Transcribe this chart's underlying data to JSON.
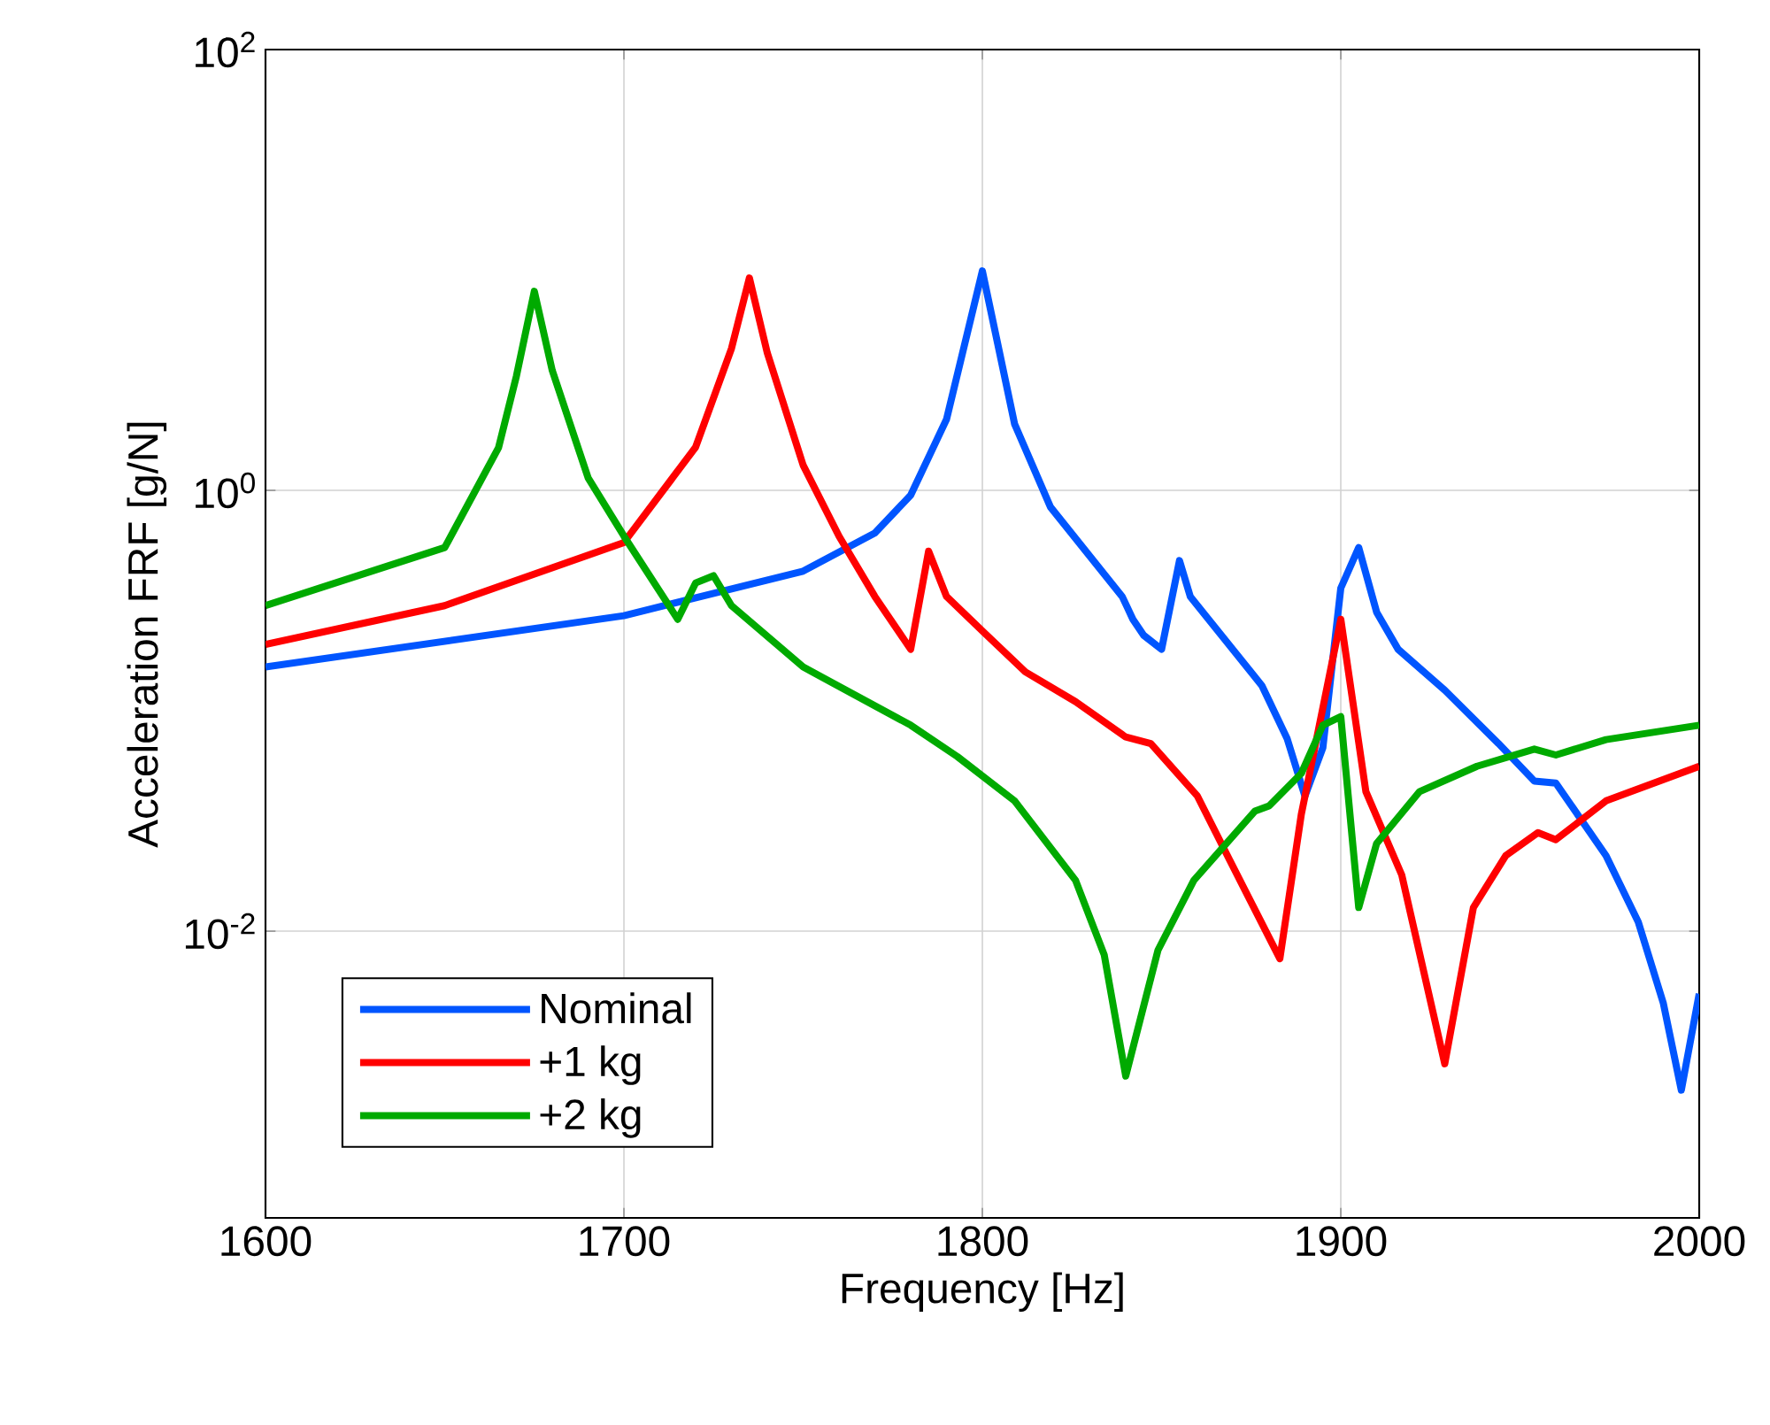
{
  "chart_data": {
    "type": "line",
    "xlabel": "Frequency [Hz]",
    "ylabel": "Acceleration FRF [g/N]",
    "log": "y",
    "grid": true,
    "legend": "bottom left",
    "line_style": "solid",
    "marker": "none",
    "xlim": [
      1600,
      2000
    ],
    "xticks": [
      1600,
      1700,
      1800,
      1900,
      2000
    ],
    "ylim": [
      0.0005,
      100
    ],
    "yticks": [
      {
        "value": 0.01,
        "label": "10$^{-2}$"
      },
      {
        "value": 1,
        "label": "10$^{0}$"
      },
      {
        "value": 100,
        "label": "10$^{2}$"
      }
    ],
    "series": [
      {
        "name": "Nominal",
        "color": "#0055ff",
        "x": [
          1600,
          1700,
          1750,
          1770,
          1780,
          1790,
          1800,
          1809,
          1819,
          1839,
          1842,
          1845,
          1850,
          1855,
          1858,
          1878,
          1885,
          1890,
          1895,
          1900,
          1905,
          1910,
          1916,
          1929,
          1944,
          1954,
          1960,
          1974,
          1983,
          1990,
          1995,
          2000
        ],
        "values": [
          0.158,
          0.27,
          0.43,
          0.64,
          0.95,
          2.1,
          9.9,
          2.0,
          0.84,
          0.33,
          0.26,
          0.22,
          0.19,
          0.48,
          0.33,
          0.13,
          0.075,
          0.041,
          0.068,
          0.36,
          0.55,
          0.28,
          0.19,
          0.124,
          0.071,
          0.048,
          0.047,
          0.022,
          0.011,
          0.0047,
          0.0019,
          0.0052
        ]
      },
      {
        "name": "+1 kg",
        "color": "#ff0000",
        "x": [
          1600,
          1650,
          1700,
          1720,
          1730,
          1735,
          1740,
          1750,
          1760,
          1770,
          1780,
          1785,
          1790,
          1800,
          1812,
          1826,
          1840,
          1847,
          1860,
          1869,
          1883,
          1889,
          1900,
          1907,
          1917,
          1929,
          1937,
          1946,
          1955,
          1960,
          1974,
          2000
        ],
        "values": [
          0.2,
          0.3,
          0.58,
          1.57,
          4.4,
          9.2,
          4.2,
          1.3,
          0.62,
          0.33,
          0.19,
          0.53,
          0.33,
          0.23,
          0.15,
          0.11,
          0.076,
          0.071,
          0.041,
          0.021,
          0.0075,
          0.034,
          0.26,
          0.043,
          0.018,
          0.0025,
          0.0128,
          0.022,
          0.028,
          0.026,
          0.039,
          0.056
        ]
      },
      {
        "name": "+2 kg",
        "color": "#00aa00",
        "x": [
          1600,
          1650,
          1665,
          1670,
          1675,
          1680,
          1690,
          1700,
          1715,
          1720,
          1725,
          1730,
          1750,
          1780,
          1793,
          1809,
          1826,
          1834,
          1840,
          1849,
          1859,
          1876,
          1880,
          1889,
          1895,
          1900,
          1905,
          1910,
          1922,
          1938,
          1954,
          1960,
          1974,
          2000
        ],
        "values": [
          0.3,
          0.55,
          1.56,
          3.3,
          8.0,
          3.5,
          1.14,
          0.62,
          0.26,
          0.38,
          0.41,
          0.3,
          0.158,
          0.086,
          0.062,
          0.039,
          0.017,
          0.0078,
          0.0022,
          0.0082,
          0.017,
          0.035,
          0.037,
          0.052,
          0.086,
          0.094,
          0.0128,
          0.025,
          0.043,
          0.056,
          0.067,
          0.063,
          0.074,
          0.086
        ]
      }
    ]
  }
}
